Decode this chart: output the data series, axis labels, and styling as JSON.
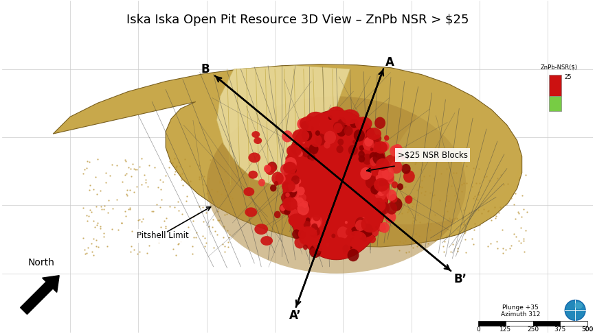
{
  "title": "Iska Iska Open Pit Resource 3D View – ZnPb NSR > $25",
  "title_fontsize": 13,
  "bg_color": "#ffffff",
  "terrain_color": "#c8a84b",
  "terrain_shadow": "#a08030",
  "terrain_light": "#e0c870",
  "section_color": "#e8d898",
  "red_color": "#cc1111",
  "drill_color": "#444444",
  "grid_color": "#cccccc",
  "legend_color_red": "#cc1111",
  "legend_color_green": "#77cc44",
  "legend_label": "ZnPb-NSR($)",
  "legend_value": "25",
  "plunge_text": "Plunge +35\nAzimuth 312",
  "scale_ticks": [
    0,
    125,
    250,
    375,
    500
  ],
  "north_text": "North"
}
